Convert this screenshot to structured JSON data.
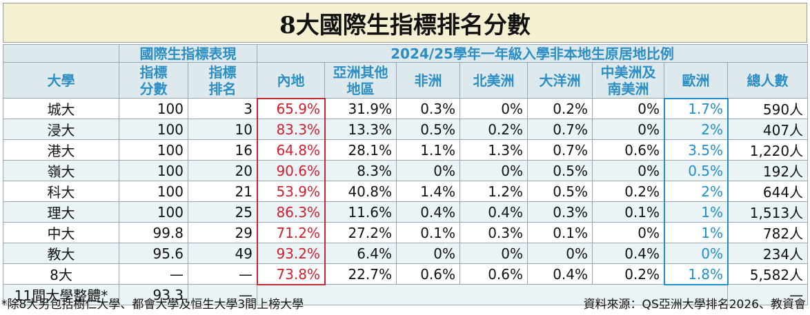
{
  "title": "8大國際生指標排名分數",
  "groups": {
    "perf": "國際生指標表現",
    "origin": "2024/25學年一年級入學非本地生原居地比例"
  },
  "headers": {
    "uni": "大學",
    "score": [
      "指標",
      "分數"
    ],
    "rank": [
      "指標",
      "排名"
    ],
    "mainland": "內地",
    "asia": [
      "亞洲其他",
      "地區"
    ],
    "africa": "非洲",
    "na": "北美洲",
    "oceania": "大洋洲",
    "latam": [
      "中美洲及",
      "南美洲"
    ],
    "europe": "歐洲",
    "total": "總人數"
  },
  "rows": [
    {
      "uni": "城大",
      "score": "100",
      "rank": "3",
      "mainland": "65.9%",
      "asia": "31.9%",
      "africa": "0.3%",
      "na": "0%",
      "oceania": "0.2%",
      "latam": "0%",
      "europe": "1.7%",
      "total": "590人"
    },
    {
      "uni": "浸大",
      "score": "100",
      "rank": "10",
      "mainland": "83.3%",
      "asia": "13.3%",
      "africa": "0.5%",
      "na": "0.2%",
      "oceania": "0.7%",
      "latam": "0%",
      "europe": "2%",
      "total": "407人"
    },
    {
      "uni": "港大",
      "score": "100",
      "rank": "16",
      "mainland": "64.8%",
      "asia": "28.1%",
      "africa": "1.1%",
      "na": "1.3%",
      "oceania": "0.7%",
      "latam": "0.6%",
      "europe": "3.5%",
      "total": "1,220人"
    },
    {
      "uni": "嶺大",
      "score": "100",
      "rank": "20",
      "mainland": "90.6%",
      "asia": "8.3%",
      "africa": "0%",
      "na": "0%",
      "oceania": "0.5%",
      "latam": "0%",
      "europe": "0.5%",
      "total": "192人"
    },
    {
      "uni": "科大",
      "score": "100",
      "rank": "21",
      "mainland": "53.9%",
      "asia": "40.8%",
      "africa": "1.4%",
      "na": "1.2%",
      "oceania": "0.5%",
      "latam": "0.2%",
      "europe": "2%",
      "total": "644人"
    },
    {
      "uni": "理大",
      "score": "100",
      "rank": "25",
      "mainland": "86.3%",
      "asia": "11.6%",
      "africa": "0.4%",
      "na": "0.4%",
      "oceania": "0.3%",
      "latam": "0.1%",
      "europe": "1%",
      "total": "1,513人"
    },
    {
      "uni": "中大",
      "score": "99.8",
      "rank": "29",
      "mainland": "71.2%",
      "asia": "27.2%",
      "africa": "0.1%",
      "na": "0.3%",
      "oceania": "0.1%",
      "latam": "0%",
      "europe": "1%",
      "total": "782人"
    },
    {
      "uni": "教大",
      "score": "95.6",
      "rank": "49",
      "mainland": "93.2%",
      "asia": "6.4%",
      "africa": "0%",
      "na": "0%",
      "oceania": "0%",
      "latam": "0.4%",
      "europe": "0%",
      "total": "234人"
    },
    {
      "uni": "8大",
      "score": "—",
      "rank": "—",
      "mainland": "73.8%",
      "asia": "22.7%",
      "africa": "0.6%",
      "na": "0.6%",
      "oceania": "0.4%",
      "latam": "0.2%",
      "europe": "1.8%",
      "total": "5,582人"
    }
  ],
  "overall": {
    "uni": "11間大學整體*",
    "score": "93.3",
    "rank": "—",
    "total": "—"
  },
  "footnote": "*除8大另包括樹仁大學、都會大學及恒生大學3間上榜大學",
  "source": "資料來源：QS亞洲大學排名2026、教資會",
  "colors": {
    "title_bg": "#f5f0d2",
    "header_bg": "#dde9ec",
    "header_text": "#2b8fc4",
    "mainland": "#d51c2b",
    "europe": "#1d8fcf"
  }
}
